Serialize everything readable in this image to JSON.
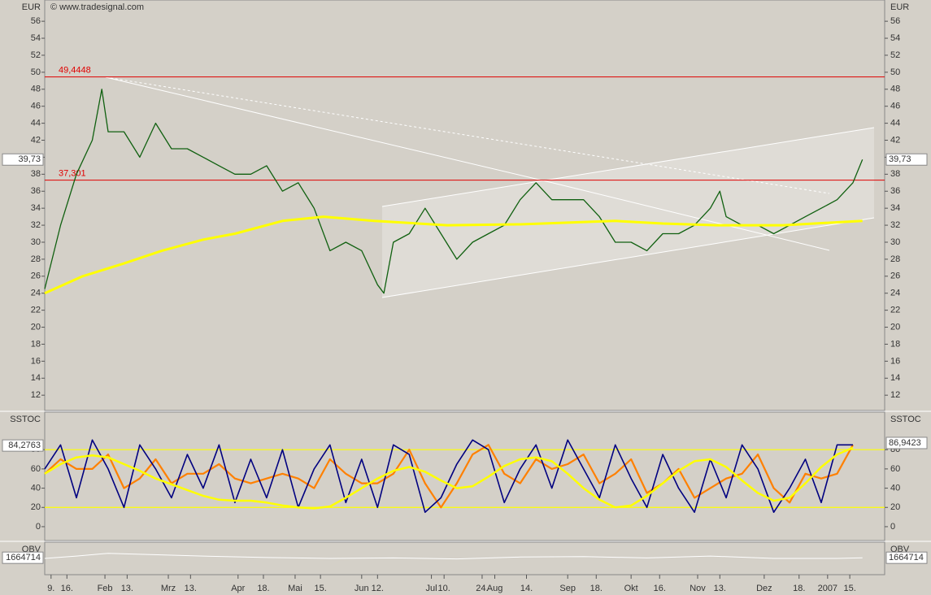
{
  "chart_data": [
    {
      "type": "line",
      "ylabel": "EUR",
      "watermark": "© www.tradesignal.com",
      "xlim": [
        0,
        265
      ],
      "xticks": [
        {
          "value": 2,
          "label": "9."
        },
        {
          "value": 7,
          "label": "16."
        },
        {
          "value": 19,
          "label": "Feb"
        },
        {
          "value": 26,
          "label": "13."
        },
        {
          "value": 39,
          "label": "Mrz"
        },
        {
          "value": 46,
          "label": "13."
        },
        {
          "value": 61,
          "label": "Apr"
        },
        {
          "value": 69,
          "label": "18."
        },
        {
          "value": 79,
          "label": "Mai"
        },
        {
          "value": 87,
          "label": "15."
        },
        {
          "value": 100,
          "label": "Jun"
        },
        {
          "value": 105,
          "label": "12."
        },
        {
          "value": 122,
          "label": "Jul"
        },
        {
          "value": 126,
          "label": "10."
        },
        {
          "value": 138,
          "label": "24."
        },
        {
          "value": 142,
          "label": "Aug"
        },
        {
          "value": 152,
          "label": "14."
        },
        {
          "value": 165,
          "label": "Sep"
        },
        {
          "value": 174,
          "label": "18."
        },
        {
          "value": 185,
          "label": "Okt"
        },
        {
          "value": 194,
          "label": "16."
        },
        {
          "value": 206,
          "label": "Nov"
        },
        {
          "value": 213,
          "label": "13."
        },
        {
          "value": 227,
          "label": "Dez"
        },
        {
          "value": 238,
          "label": "18."
        },
        {
          "value": 247,
          "label": "2007"
        },
        {
          "value": 254,
          "label": "15."
        }
      ],
      "ylim": [
        10.2,
        58.5
      ],
      "yticks": [
        12,
        14,
        16,
        18,
        20,
        22,
        24,
        26,
        28,
        30,
        32,
        34,
        36,
        38,
        40,
        42,
        44,
        46,
        48,
        50,
        52,
        54,
        56
      ],
      "hlines": [
        {
          "value": 49.4448,
          "label": "49,4448"
        },
        {
          "value": 37.301,
          "label": "37,301"
        }
      ],
      "hline_color": "#e00000",
      "markers": [
        {
          "value": 39.73,
          "label": "39,73",
          "side": "both"
        }
      ],
      "series": [
        {
          "color": "#106010",
          "width": 1.3,
          "x": [
            0,
            5,
            10,
            15,
            18,
            20,
            25,
            30,
            35,
            40,
            45,
            50,
            55,
            60,
            65,
            70,
            75,
            80,
            85,
            90,
            95,
            100,
            105,
            107,
            110,
            115,
            120,
            125,
            130,
            135,
            140,
            145,
            150,
            155,
            160,
            165,
            170,
            175,
            180,
            185,
            190,
            195,
            200,
            205,
            210,
            213,
            215,
            220,
            225,
            230,
            235,
            240,
            245,
            250,
            255,
            258
          ],
          "values": [
            24.5,
            32,
            38,
            42,
            48,
            43,
            43,
            40,
            44,
            41,
            41,
            40,
            39,
            38,
            38,
            39,
            36,
            37,
            34,
            29,
            30,
            29,
            25,
            24,
            30,
            31,
            34,
            31,
            28,
            30,
            31,
            32,
            35,
            37,
            35,
            35,
            35,
            33,
            30,
            30,
            29,
            31,
            31,
            32,
            34,
            36,
            33,
            32,
            32,
            31,
            32,
            33,
            34,
            35,
            37,
            39.73
          ]
        },
        {
          "color": "#ffff00",
          "width": 3,
          "x": [
            0,
            12,
            25,
            37,
            50,
            60,
            75,
            88,
            104,
            127,
            150,
            165,
            180,
            195,
            212,
            233,
            258
          ],
          "values": [
            24,
            26,
            27.5,
            29,
            30.3,
            31,
            32.5,
            33,
            32.5,
            32,
            32.1,
            32.3,
            32.5,
            32.2,
            32,
            32,
            32.5
          ]
        }
      ]
    },
    {
      "type": "line",
      "ylabel": "SSTOC",
      "ylim": [
        -14.4,
        119
      ],
      "yticks": [
        0,
        20,
        40,
        60,
        80
      ],
      "levels": [
        20,
        80
      ],
      "level_color": "#ffff00",
      "markers": [
        {
          "value": 84.2763,
          "label": "84,2763",
          "side": "left"
        },
        {
          "value": 86.9423,
          "label": "86,9423",
          "side": "right"
        }
      ],
      "x": [
        0,
        5,
        10,
        15,
        20,
        25,
        30,
        35,
        40,
        45,
        50,
        55,
        60,
        65,
        70,
        75,
        80,
        85,
        90,
        95,
        100,
        105,
        110,
        115,
        120,
        125,
        130,
        135,
        140,
        145,
        150,
        155,
        160,
        165,
        170,
        175,
        180,
        185,
        190,
        195,
        200,
        205,
        210,
        215,
        220,
        225,
        230,
        235,
        240,
        245,
        250,
        255
      ],
      "series": [
        {
          "color": "#ff8000",
          "width": 2.2,
          "values": [
            55,
            70,
            60,
            60,
            75,
            40,
            50,
            70,
            45,
            55,
            55,
            65,
            50,
            45,
            50,
            55,
            50,
            40,
            70,
            55,
            45,
            45,
            55,
            80,
            45,
            20,
            45,
            75,
            85,
            55,
            45,
            70,
            60,
            65,
            75,
            45,
            55,
            70,
            35,
            45,
            60,
            30,
            40,
            50,
            55,
            75,
            40,
            25,
            55,
            50,
            55,
            85
          ]
        },
        {
          "color": "#000080",
          "width": 1.6,
          "values": [
            60,
            85,
            30,
            90,
            60,
            20,
            85,
            60,
            30,
            75,
            40,
            85,
            25,
            70,
            30,
            80,
            20,
            60,
            85,
            25,
            70,
            20,
            85,
            75,
            15,
            30,
            65,
            90,
            80,
            25,
            60,
            85,
            40,
            90,
            60,
            30,
            85,
            50,
            20,
            75,
            40,
            15,
            70,
            30,
            85,
            60,
            15,
            40,
            70,
            25,
            85,
            85
          ]
        },
        {
          "color": "#ffff00",
          "width": 2.5,
          "values": [
            55,
            65,
            72,
            74,
            72,
            65,
            58,
            50,
            44,
            38,
            32,
            28,
            27,
            27,
            25,
            22,
            20,
            19,
            21,
            30,
            40,
            50,
            58,
            62,
            57,
            48,
            40,
            42,
            52,
            63,
            70,
            72,
            68,
            55,
            40,
            28,
            20,
            22,
            32,
            45,
            58,
            68,
            70,
            62,
            48,
            35,
            27,
            30,
            45,
            62,
            75,
            82
          ]
        }
      ]
    },
    {
      "type": "line",
      "ylabel": "OBV",
      "ylim": [
        1300000,
        2000000
      ],
      "markers": [
        {
          "value": 1664714,
          "side": "both"
        }
      ],
      "x": [
        0,
        10,
        20,
        30,
        50,
        70,
        90,
        110,
        130,
        150,
        170,
        190,
        210,
        230,
        250,
        258
      ],
      "series": [
        {
          "color": "#ffffff",
          "width": 1,
          "values": [
            1650000,
            1700000,
            1760000,
            1740000,
            1700000,
            1670000,
            1650000,
            1660000,
            1640000,
            1680000,
            1690000,
            1660000,
            1700000,
            1650000,
            1650000,
            1664714
          ]
        }
      ]
    }
  ]
}
